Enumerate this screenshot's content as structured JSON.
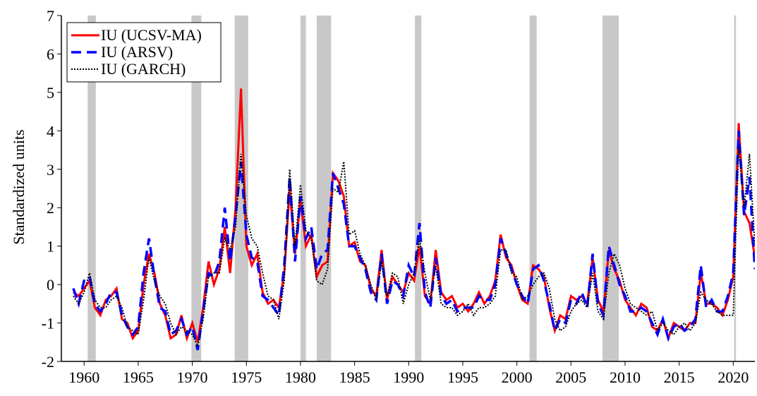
{
  "chart_data": {
    "type": "line",
    "ylabel": "Standardized units",
    "xlim": [
      1957.9,
      2022
    ],
    "ylim": [
      -2,
      7
    ],
    "xticks": [
      1960,
      1965,
      1970,
      1975,
      1980,
      1985,
      1990,
      1995,
      2000,
      2005,
      2010,
      2015,
      2020
    ],
    "yticks": [
      -2,
      -1,
      0,
      1,
      2,
      3,
      4,
      5,
      6,
      7
    ],
    "legend": "upper left",
    "shaded_color": "#c8c8c8",
    "shaded_periods": [
      [
        1960.33,
        1961.08
      ],
      [
        1969.92,
        1970.83
      ],
      [
        1973.92,
        1975.17
      ],
      [
        1980.0,
        1980.5
      ],
      [
        1981.5,
        1982.83
      ],
      [
        1990.58,
        1991.17
      ],
      [
        2001.17,
        2001.83
      ],
      [
        2007.92,
        2009.42
      ],
      [
        2020.08,
        2020.25
      ]
    ],
    "x": [
      1959,
      1959.5,
      1960,
      1960.5,
      1961,
      1961.5,
      1962,
      1962.5,
      1963,
      1963.5,
      1964,
      1964.5,
      1965,
      1965.5,
      1966,
      1966.5,
      1967,
      1967.5,
      1968,
      1968.5,
      1969,
      1969.5,
      1970,
      1970.5,
      1971,
      1971.5,
      1972,
      1972.5,
      1973,
      1973.5,
      1974,
      1974.5,
      1975,
      1975.5,
      1976,
      1976.5,
      1977,
      1977.5,
      1978,
      1978.5,
      1979,
      1979.5,
      1980,
      1980.5,
      1981,
      1981.5,
      1982,
      1982.5,
      1983,
      1983.5,
      1984,
      1984.5,
      1985,
      1985.5,
      1986,
      1986.5,
      1987,
      1987.5,
      1988,
      1988.5,
      1989,
      1989.5,
      1990,
      1990.5,
      1991,
      1991.5,
      1992,
      1992.5,
      1993,
      1993.5,
      1994,
      1994.5,
      1995,
      1995.5,
      1996,
      1996.5,
      1997,
      1997.5,
      1998,
      1998.5,
      1999,
      1999.5,
      2000,
      2000.5,
      2001,
      2001.5,
      2002,
      2002.5,
      2003,
      2003.5,
      2004,
      2004.5,
      2005,
      2005.5,
      2006,
      2006.5,
      2007,
      2007.5,
      2008,
      2008.5,
      2009,
      2009.5,
      2010,
      2010.5,
      2011,
      2011.5,
      2012,
      2012.5,
      2013,
      2013.5,
      2014,
      2014.5,
      2015,
      2015.5,
      2016,
      2016.5,
      2017,
      2017.5,
      2018,
      2018.5,
      2019,
      2019.5,
      2020,
      2020.5,
      2021,
      2021.5,
      2022
    ],
    "series": [
      {
        "name": "IU (UCSV-MA)",
        "color": "#ff0000",
        "style": "solid",
        "values": [
          -0.2,
          -0.3,
          -0.1,
          0.1,
          -0.6,
          -0.8,
          -0.4,
          -0.3,
          -0.1,
          -0.9,
          -1.0,
          -1.4,
          -1.2,
          0.0,
          0.8,
          0.3,
          -0.5,
          -0.8,
          -1.4,
          -1.3,
          -0.8,
          -1.4,
          -1.0,
          -1.5,
          -0.6,
          0.6,
          0.0,
          0.4,
          1.5,
          0.3,
          2.0,
          5.1,
          1.0,
          0.5,
          0.8,
          -0.2,
          -0.5,
          -0.4,
          -0.6,
          0.3,
          2.5,
          0.8,
          2.2,
          1.0,
          1.3,
          0.2,
          0.5,
          0.6,
          2.9,
          2.7,
          2.3,
          1.0,
          1.1,
          0.6,
          0.5,
          -0.1,
          -0.3,
          0.9,
          -0.4,
          0.2,
          0.0,
          -0.2,
          0.3,
          0.1,
          1.0,
          -0.3,
          -0.5,
          0.9,
          -0.2,
          -0.4,
          -0.3,
          -0.6,
          -0.5,
          -0.7,
          -0.5,
          -0.2,
          -0.5,
          -0.3,
          0.1,
          1.3,
          0.7,
          0.5,
          0.0,
          -0.4,
          -0.5,
          0.5,
          0.4,
          0.2,
          -0.6,
          -1.2,
          -0.8,
          -0.9,
          -0.3,
          -0.4,
          -0.3,
          -0.5,
          0.7,
          -0.4,
          -0.7,
          0.9,
          0.4,
          0.1,
          -0.4,
          -0.6,
          -0.8,
          -0.5,
          -0.6,
          -1.1,
          -1.2,
          -0.9,
          -1.4,
          -1.0,
          -1.1,
          -1.2,
          -1.0,
          -1.0,
          0.3,
          -0.5,
          -0.5,
          -0.6,
          -0.8,
          -0.4,
          0.2,
          4.2,
          1.9,
          1.6,
          0.7
        ]
      },
      {
        "name": "IU (ARSV)",
        "color": "#0000ff",
        "style": "dashed",
        "values": [
          -0.1,
          -0.5,
          0.1,
          0.2,
          -0.5,
          -0.7,
          -0.5,
          -0.2,
          -0.2,
          -0.8,
          -1.1,
          -1.3,
          -1.1,
          0.3,
          1.2,
          0.2,
          -0.6,
          -0.7,
          -1.3,
          -1.2,
          -0.9,
          -1.3,
          -1.1,
          -1.7,
          -0.7,
          0.3,
          0.2,
          0.6,
          2.0,
          0.6,
          1.8,
          3.2,
          1.3,
          0.7,
          0.6,
          -0.3,
          -0.4,
          -0.6,
          -0.8,
          0.5,
          2.8,
          0.6,
          2.3,
          1.2,
          1.5,
          0.4,
          0.8,
          0.9,
          2.9,
          2.5,
          2.1,
          1.0,
          1.0,
          0.7,
          0.4,
          -0.2,
          -0.4,
          0.8,
          -0.5,
          0.1,
          0.0,
          -0.3,
          0.5,
          0.2,
          1.6,
          -0.2,
          -0.6,
          0.7,
          -0.3,
          -0.5,
          -0.4,
          -0.7,
          -0.6,
          -0.6,
          -0.6,
          -0.3,
          -0.4,
          -0.4,
          0.0,
          1.2,
          0.8,
          0.4,
          0.0,
          -0.3,
          -0.5,
          0.4,
          0.5,
          0.1,
          -0.5,
          -1.2,
          -0.9,
          -1.0,
          -0.4,
          -0.5,
          -0.2,
          -0.6,
          0.8,
          -0.5,
          -0.8,
          1.0,
          0.5,
          0.0,
          -0.3,
          -0.7,
          -0.7,
          -0.6,
          -0.7,
          -1.0,
          -1.3,
          -0.9,
          -1.4,
          -1.1,
          -1.0,
          -1.2,
          -1.1,
          -0.9,
          0.5,
          -0.6,
          -0.4,
          -0.7,
          -0.7,
          -0.3,
          0.3,
          4.0,
          1.8,
          2.8,
          0.4
        ]
      },
      {
        "name": "IU (GARCH)",
        "color": "#000000",
        "style": "dotted",
        "values": [
          -0.3,
          -0.5,
          -0.2,
          0.3,
          -0.4,
          -0.6,
          -0.6,
          -0.4,
          -0.3,
          -0.6,
          -1.1,
          -1.2,
          -1.3,
          -0.4,
          0.7,
          0.1,
          -0.3,
          -0.5,
          -1.0,
          -1.3,
          -1.1,
          -1.2,
          -1.3,
          -1.6,
          -0.9,
          0.2,
          0.3,
          0.3,
          1.2,
          0.9,
          1.5,
          3.4,
          1.8,
          1.2,
          1.0,
          0.3,
          -0.3,
          -0.4,
          -0.9,
          0.1,
          3.0,
          1.0,
          2.6,
          1.4,
          1.2,
          0.1,
          0.0,
          0.4,
          2.5,
          2.4,
          3.2,
          1.3,
          1.4,
          0.8,
          0.5,
          0.0,
          -0.4,
          0.6,
          -0.3,
          0.3,
          0.2,
          -0.5,
          0.0,
          0.3,
          1.2,
          0.3,
          -0.4,
          0.5,
          -0.5,
          -0.6,
          -0.6,
          -0.8,
          -0.7,
          -0.5,
          -0.8,
          -0.6,
          -0.6,
          -0.5,
          -0.3,
          0.9,
          0.9,
          0.3,
          0.2,
          -0.4,
          -0.3,
          0.0,
          0.2,
          0.3,
          -0.1,
          -0.9,
          -1.2,
          -1.1,
          -0.7,
          -0.5,
          -0.4,
          -0.6,
          0.3,
          -0.7,
          -0.9,
          0.3,
          0.8,
          0.5,
          -0.1,
          -0.5,
          -0.6,
          -0.7,
          -0.8,
          -0.7,
          -1.2,
          -1.0,
          -1.2,
          -1.3,
          -1.1,
          -1.0,
          -1.2,
          -1.0,
          -0.2,
          -0.4,
          -0.5,
          -0.7,
          -0.8,
          -0.8,
          -0.8,
          3.6,
          2.0,
          3.4,
          1.0
        ]
      }
    ]
  }
}
